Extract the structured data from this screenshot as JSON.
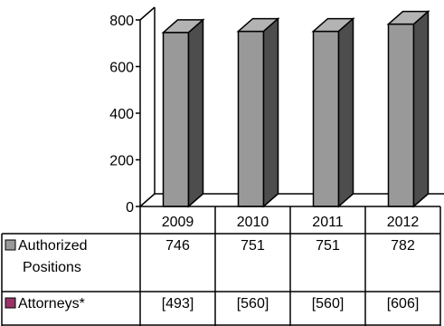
{
  "chart_data": {
    "type": "bar",
    "categories": [
      "2009",
      "2010",
      "2011",
      "2012"
    ],
    "series": [
      {
        "name": "Authorized Positions",
        "values": [
          746,
          751,
          751,
          782
        ],
        "color": "#999999"
      },
      {
        "name": "Attorneys*",
        "values": [
          493,
          560,
          560,
          606
        ],
        "color": "#993366"
      }
    ],
    "table_rows": [
      {
        "label_lines": [
          "Authorized",
          "Positions"
        ],
        "cells": [
          "746",
          "751",
          "751",
          "782"
        ]
      },
      {
        "label_lines": [
          "Attorneys*"
        ],
        "cells": [
          "[493]",
          "[560]",
          "[560]",
          "[606]"
        ]
      }
    ],
    "yticks": [
      0,
      200,
      400,
      600,
      800
    ],
    "ylim": [
      0,
      800
    ],
    "legend": "data-table",
    "grid": false
  }
}
